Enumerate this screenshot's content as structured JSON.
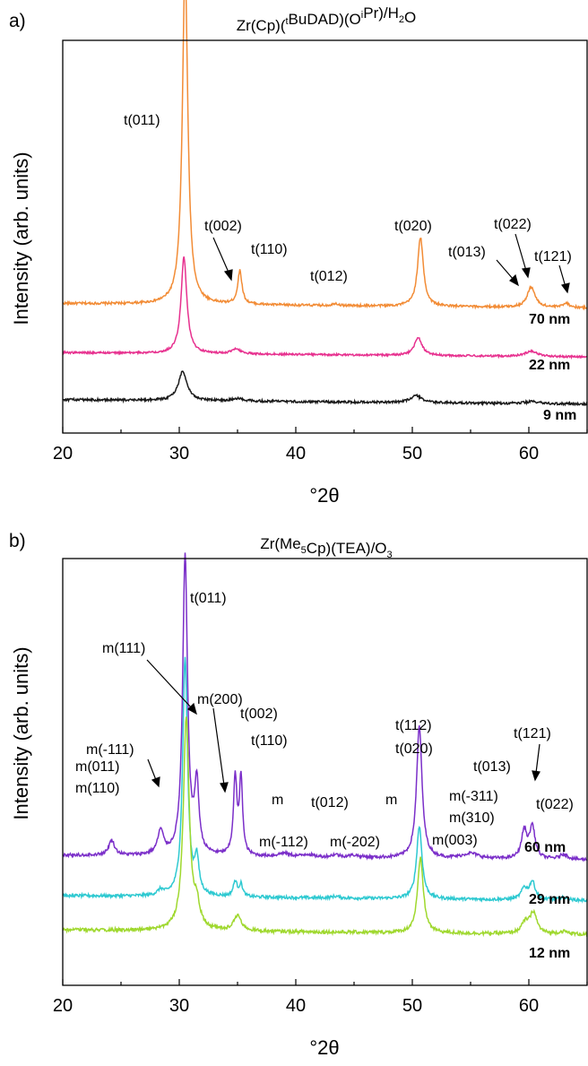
{
  "chart_data": [
    {
      "type": "line",
      "panel_label": "a)",
      "title": {
        "text": "Zr(Cp)(tBuDAD)(OiPr)/H2O",
        "parts": [
          [
            "Zr(Cp)(",
            ""
          ],
          [
            "t",
            "sup"
          ],
          [
            "BuDAD)(O",
            ""
          ],
          [
            "i",
            "sup"
          ],
          [
            "Pr)/H",
            ""
          ],
          [
            "2",
            "sub"
          ],
          [
            "O",
            ""
          ]
        ]
      },
      "xlabel": "°2θ",
      "ylabel": "Intensity (arb. units)",
      "xlim": [
        20,
        65
      ],
      "xticks": [
        20,
        30,
        40,
        50,
        60
      ],
      "y_ticks_shown": false,
      "grid": false,
      "series": [
        {
          "name": "70 nm",
          "color": "#f28c36",
          "baseline": 0.33,
          "noise": 0.003,
          "peaks": [
            [
              30.5,
              0.86,
              0.28
            ],
            [
              35.2,
              0.085,
              0.22
            ],
            [
              43.4,
              0.006,
              0.25
            ],
            [
              50.7,
              0.175,
              0.3
            ],
            [
              60.2,
              0.052,
              0.4
            ],
            [
              63.2,
              0.012,
              0.3
            ]
          ]
        },
        {
          "name": "22 nm",
          "color": "#e7318f",
          "baseline": 0.205,
          "noise": 0.0025,
          "peaks": [
            [
              30.4,
              0.245,
              0.3
            ],
            [
              34.9,
              0.012,
              0.45
            ],
            [
              50.5,
              0.045,
              0.4
            ],
            [
              60.2,
              0.014,
              0.6
            ]
          ]
        },
        {
          "name": "9 nm",
          "color": "#1a1a1a",
          "baseline": 0.085,
          "noise": 0.003,
          "peaks": [
            [
              30.3,
              0.075,
              0.45
            ],
            [
              35.0,
              0.006,
              0.6
            ],
            [
              50.3,
              0.018,
              0.55
            ],
            [
              60.3,
              0.005,
              0.7
            ]
          ]
        }
      ],
      "annotations": [
        {
          "text": "t(011)",
          "x": 30.5
        },
        {
          "text": "t(002)",
          "x": 35.0
        },
        {
          "text": "t(110)",
          "x": 35.2
        },
        {
          "text": "t(012)",
          "x": 43.4
        },
        {
          "text": "t(020)",
          "x": 50.7
        },
        {
          "text": "t(013)",
          "x": 59.6
        },
        {
          "text": "t(022)",
          "x": 60.2
        },
        {
          "text": "t(121)",
          "x": 63.2
        }
      ],
      "series_labels": [
        "70 nm",
        "22 nm",
        "9 nm"
      ]
    },
    {
      "type": "line",
      "panel_label": "b)",
      "title": {
        "text": "Zr(Me5Cp)(TEA)/O3",
        "parts": [
          [
            "Zr(Me",
            ""
          ],
          [
            "5",
            "sub"
          ],
          [
            "Cp)(TEA)/O",
            ""
          ],
          [
            "3",
            "sub"
          ]
        ]
      },
      "xlabel": "°2θ",
      "ylabel": "Intensity (arb. units)",
      "xlim": [
        20,
        65
      ],
      "xticks": [
        20,
        30,
        40,
        50,
        60
      ],
      "y_ticks_shown": false,
      "grid": false,
      "series": [
        {
          "name": "60 nm",
          "color": "#7b2fc9",
          "baseline": 0.305,
          "noise": 0.0035,
          "peaks": [
            [
              24.2,
              0.035,
              0.3
            ],
            [
              28.4,
              0.055,
              0.3
            ],
            [
              30.5,
              0.7,
              0.25
            ],
            [
              31.5,
              0.16,
              0.22
            ],
            [
              34.8,
              0.18,
              0.18
            ],
            [
              35.3,
              0.18,
              0.16
            ],
            [
              39.0,
              0.008,
              0.6
            ],
            [
              41.0,
              0.006,
              0.5
            ],
            [
              43.4,
              0.006,
              0.4
            ],
            [
              45.0,
              0.005,
              0.6
            ],
            [
              50.6,
              0.31,
              0.28
            ],
            [
              55.0,
              0.012,
              0.8
            ],
            [
              59.6,
              0.065,
              0.28
            ],
            [
              60.3,
              0.075,
              0.28
            ],
            [
              63.0,
              0.012,
              0.4
            ]
          ]
        },
        {
          "name": "29 nm",
          "color": "#2ec9d1",
          "baseline": 0.21,
          "noise": 0.0035,
          "peaks": [
            [
              28.4,
              0.012,
              0.3
            ],
            [
              30.5,
              0.56,
              0.25
            ],
            [
              31.5,
              0.08,
              0.22
            ],
            [
              34.8,
              0.035,
              0.2
            ],
            [
              35.3,
              0.028,
              0.18
            ],
            [
              43.4,
              0.004,
              0.4
            ],
            [
              50.6,
              0.17,
              0.28
            ],
            [
              59.6,
              0.026,
              0.3
            ],
            [
              60.3,
              0.042,
              0.3
            ],
            [
              63.0,
              0.006,
              0.4
            ]
          ]
        },
        {
          "name": "12 nm",
          "color": "#9fd82e",
          "baseline": 0.13,
          "noise": 0.004,
          "peaks": [
            [
              30.6,
              0.5,
              0.3
            ],
            [
              31.5,
              0.05,
              0.3
            ],
            [
              35.0,
              0.035,
              0.4
            ],
            [
              50.7,
              0.175,
              0.3
            ],
            [
              59.7,
              0.025,
              0.4
            ],
            [
              60.4,
              0.048,
              0.35
            ],
            [
              63.0,
              0.006,
              0.5
            ]
          ]
        }
      ],
      "annotations": [
        {
          "text": "t(011)",
          "x": 30.5
        },
        {
          "text": "m(111)",
          "x": 31.5
        },
        {
          "text": "m(200)",
          "x": 34.0
        },
        {
          "text": "t(002)",
          "x": 34.8
        },
        {
          "text": "t(110)",
          "x": 35.3
        },
        {
          "text": "m(011)",
          "x": 24.2
        },
        {
          "text": "m(110)",
          "x": 24.2
        },
        {
          "text": "m(-111)",
          "x": 28.4
        },
        {
          "text": "m",
          "x": 39.0
        },
        {
          "text": "t(012)",
          "x": 43.4
        },
        {
          "text": "m",
          "x": 48.5
        },
        {
          "text": "m(-112)",
          "x": 41.0
        },
        {
          "text": "m(-202)",
          "x": 45.0
        },
        {
          "text": "t(112)",
          "x": 50.6
        },
        {
          "text": "t(020)",
          "x": 50.6
        },
        {
          "text": "m(003)",
          "x": 51.5
        },
        {
          "text": "m(-311)",
          "x": 59.6
        },
        {
          "text": "m(310)",
          "x": 55.0
        },
        {
          "text": "t(013)",
          "x": 59.6
        },
        {
          "text": "t(121)",
          "x": 60.3
        },
        {
          "text": "t(022)",
          "x": 63.0
        }
      ],
      "series_labels": [
        "60 nm",
        "29 nm",
        "12 nm"
      ]
    }
  ]
}
